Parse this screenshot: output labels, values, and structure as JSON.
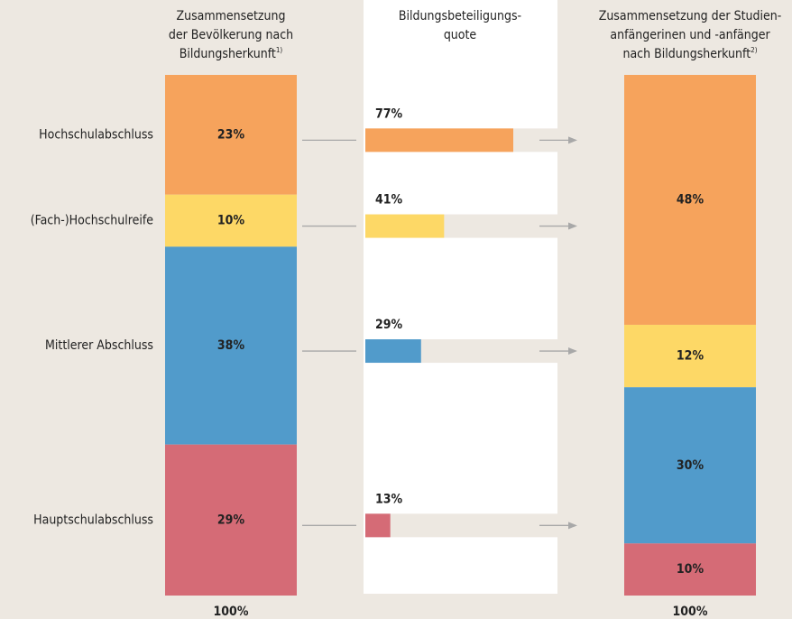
{
  "chart_data": [
    {
      "type": "stacked_column",
      "title_lines": [
        "Zusammensetzung",
        "der Bevölkerung nach",
        "Bildungsherkunft"
      ],
      "footnote": "1)",
      "categories": [
        "Hochschulabschluss",
        "(Fach-)Hochschulreife",
        "Mittlerer Abschluss",
        "Hauptschulabschluss"
      ],
      "values": [
        23,
        10,
        38,
        29
      ],
      "value_labels": [
        "23%",
        "10%",
        "38%",
        "29%"
      ],
      "colors": [
        "#f6a35c",
        "#fdd866",
        "#519bcb",
        "#d56b76"
      ],
      "ylim": [
        0,
        100
      ],
      "total": 100,
      "total_label": "100%"
    },
    {
      "type": "bar",
      "title_lines": [
        "Bildungsbeteiligungs-",
        "quote"
      ],
      "values": [
        77,
        41,
        29,
        13
      ],
      "value_labels": [
        "77%",
        "41%",
        "29%",
        "13%"
      ],
      "colors": [
        "#f6a35c",
        "#fdd866",
        "#519bcb",
        "#d56b76"
      ],
      "xlim": [
        0,
        100
      ]
    },
    {
      "type": "stacked_column",
      "title_lines": [
        "Zusammensetzung der Studien-",
        "anfängerinen und -anfänger",
        "nach Bildungsherkunft"
      ],
      "footnote": "2)",
      "values": [
        48,
        12,
        30,
        10
      ],
      "value_labels": [
        "48%",
        "12%",
        "30%",
        "10%"
      ],
      "colors": [
        "#f6a35c",
        "#fdd866",
        "#519bcb",
        "#d56b76"
      ],
      "ylim": [
        0,
        100
      ],
      "total": 100,
      "total_label": "100%"
    }
  ]
}
